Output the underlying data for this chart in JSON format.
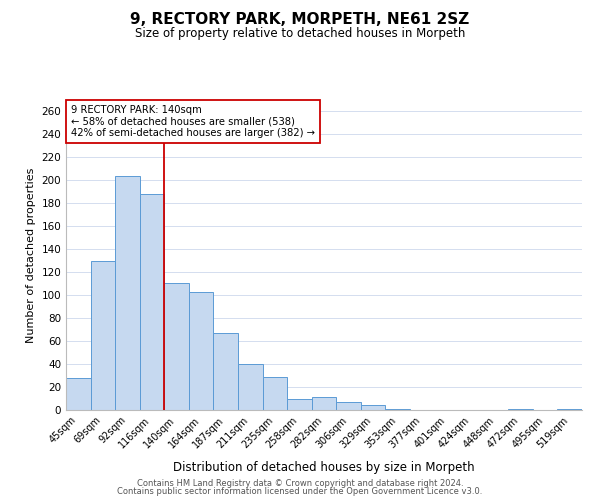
{
  "title": "9, RECTORY PARK, MORPETH, NE61 2SZ",
  "subtitle": "Size of property relative to detached houses in Morpeth",
  "xlabel": "Distribution of detached houses by size in Morpeth",
  "ylabel": "Number of detached properties",
  "categories": [
    "45sqm",
    "69sqm",
    "92sqm",
    "116sqm",
    "140sqm",
    "164sqm",
    "187sqm",
    "211sqm",
    "235sqm",
    "258sqm",
    "282sqm",
    "306sqm",
    "329sqm",
    "353sqm",
    "377sqm",
    "401sqm",
    "424sqm",
    "448sqm",
    "472sqm",
    "495sqm",
    "519sqm"
  ],
  "values": [
    28,
    130,
    204,
    188,
    111,
    103,
    67,
    40,
    29,
    10,
    11,
    7,
    4,
    1,
    0,
    0,
    0,
    0,
    1,
    0,
    1
  ],
  "bar_color": "#c6d9f0",
  "bar_edge_color": "#5b9bd5",
  "vline_x_idx": 4,
  "vline_color": "#cc0000",
  "annotation_text": "9 RECTORY PARK: 140sqm\n← 58% of detached houses are smaller (538)\n42% of semi-detached houses are larger (382) →",
  "annotation_box_color": "#ffffff",
  "annotation_box_edge": "#cc0000",
  "ylim": [
    0,
    270
  ],
  "yticks": [
    0,
    20,
    40,
    60,
    80,
    100,
    120,
    140,
    160,
    180,
    200,
    220,
    240,
    260
  ],
  "footer_line1": "Contains HM Land Registry data © Crown copyright and database right 2024.",
  "footer_line2": "Contains public sector information licensed under the Open Government Licence v3.0.",
  "background_color": "#ffffff",
  "grid_color": "#cdd8ec"
}
